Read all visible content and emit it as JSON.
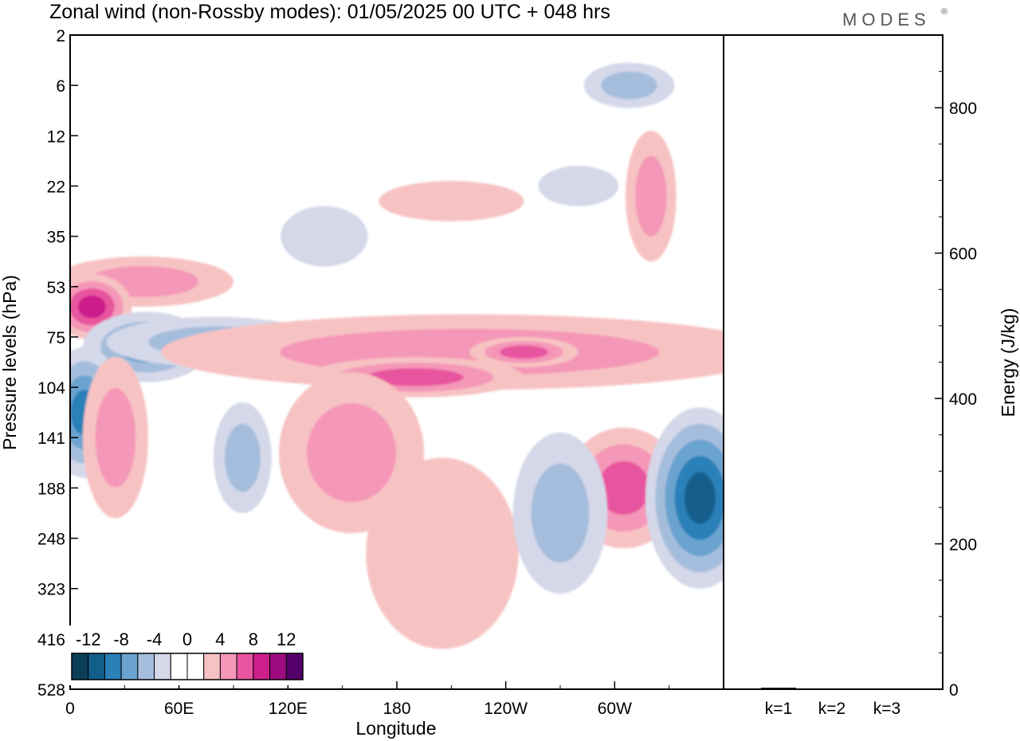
{
  "header": {
    "title": "Zonal wind (non-Rossby modes):  01/05/2025  00 UTC  + 048 hrs",
    "logo": "MODES",
    "logo_mark": "®"
  },
  "chart_data": [
    {
      "type": "heatmap",
      "title": "Zonal wind (non-Rossby modes):  01/05/2025  00 UTC  + 048 hrs",
      "xlabel": "Longitude",
      "ylabel": "Pressure levels (hPa)",
      "x_ticks": [
        "0",
        "60E",
        "120E",
        "180",
        "120W",
        "60W"
      ],
      "x_tick_lon": [
        0,
        60,
        120,
        180,
        240,
        300
      ],
      "xlim": [
        0,
        360
      ],
      "y_ticks": [
        "2",
        "6",
        "12",
        "22",
        "35",
        "53",
        "75",
        "104",
        "141",
        "188",
        "248",
        "323",
        "416",
        "528"
      ],
      "y_scale": "model levels (pressure decreasing upward)",
      "colorbar": {
        "labels": [
          "-12",
          "-8",
          "-4",
          "0",
          "4",
          "8",
          "12"
        ],
        "colors": [
          "#0d3f5c",
          "#135f8c",
          "#2a80b8",
          "#6aa3cf",
          "#a5bddc",
          "#d4d8e9",
          "#ffffff",
          "#ffffff",
          "#f7c2c2",
          "#f497b8",
          "#e8559f",
          "#cc1f8c",
          "#9e0b7f",
          "#54006b"
        ]
      },
      "regions": [
        {
          "lon": 140,
          "level": 4.0,
          "w": 24,
          "h": 0.6,
          "value": -3
        },
        {
          "lon": 210,
          "level": 3.3,
          "w": 40,
          "h": 0.4,
          "value": 3
        },
        {
          "lon": 280,
          "level": 3.0,
          "w": 22,
          "h": 0.4,
          "value": -3
        },
        {
          "lon": 320,
          "level": 3.2,
          "w": 14,
          "h": 1.3,
          "value": 5
        },
        {
          "lon": 308,
          "level": 1.0,
          "w": 25,
          "h": 0.45,
          "value": -5
        },
        {
          "lon": 40,
          "level": 4.9,
          "w": 50,
          "h": 0.5,
          "value": 5
        },
        {
          "lon": 12,
          "level": 5.4,
          "w": 22,
          "h": 0.65,
          "value": 9
        },
        {
          "lon": 42,
          "level": 6.2,
          "w": 35,
          "h": 0.7,
          "value": -6
        },
        {
          "lon": 80,
          "level": 6.1,
          "w": 60,
          "h": 0.5,
          "value": -4
        },
        {
          "lon": 220,
          "level": 6.3,
          "w": 170,
          "h": 0.75,
          "value": 4
        },
        {
          "lon": 190,
          "level": 6.8,
          "w": 60,
          "h": 0.4,
          "value": 7
        },
        {
          "lon": 250,
          "level": 6.3,
          "w": 30,
          "h": 0.3,
          "value": 6
        },
        {
          "lon": 8,
          "level": 7.5,
          "w": 22,
          "h": 1.3,
          "value": -8
        },
        {
          "lon": 25,
          "level": 8.0,
          "w": 18,
          "h": 1.6,
          "value": 5
        },
        {
          "lon": 95,
          "level": 8.4,
          "w": 16,
          "h": 1.1,
          "value": -5
        },
        {
          "lon": 155,
          "level": 8.3,
          "w": 40,
          "h": 1.6,
          "value": 4
        },
        {
          "lon": 305,
          "level": 9.0,
          "w": 32,
          "h": 1.2,
          "value": 7
        },
        {
          "lon": 347,
          "level": 9.2,
          "w": 30,
          "h": 1.8,
          "value": -10
        },
        {
          "lon": 205,
          "level": 10.3,
          "w": 42,
          "h": 1.9,
          "value": 3
        },
        {
          "lon": 270,
          "level": 9.5,
          "w": 26,
          "h": 1.6,
          "value": -4
        }
      ]
    },
    {
      "type": "bar",
      "categories": [
        "k=1",
        "k=2",
        "k=3"
      ],
      "values": [
        2,
        1,
        1
      ],
      "ylabel": "Energy (J/kg)",
      "y_ticks": [
        "0",
        "200",
        "400",
        "600",
        "800"
      ],
      "ylim": [
        0,
        900
      ]
    }
  ]
}
